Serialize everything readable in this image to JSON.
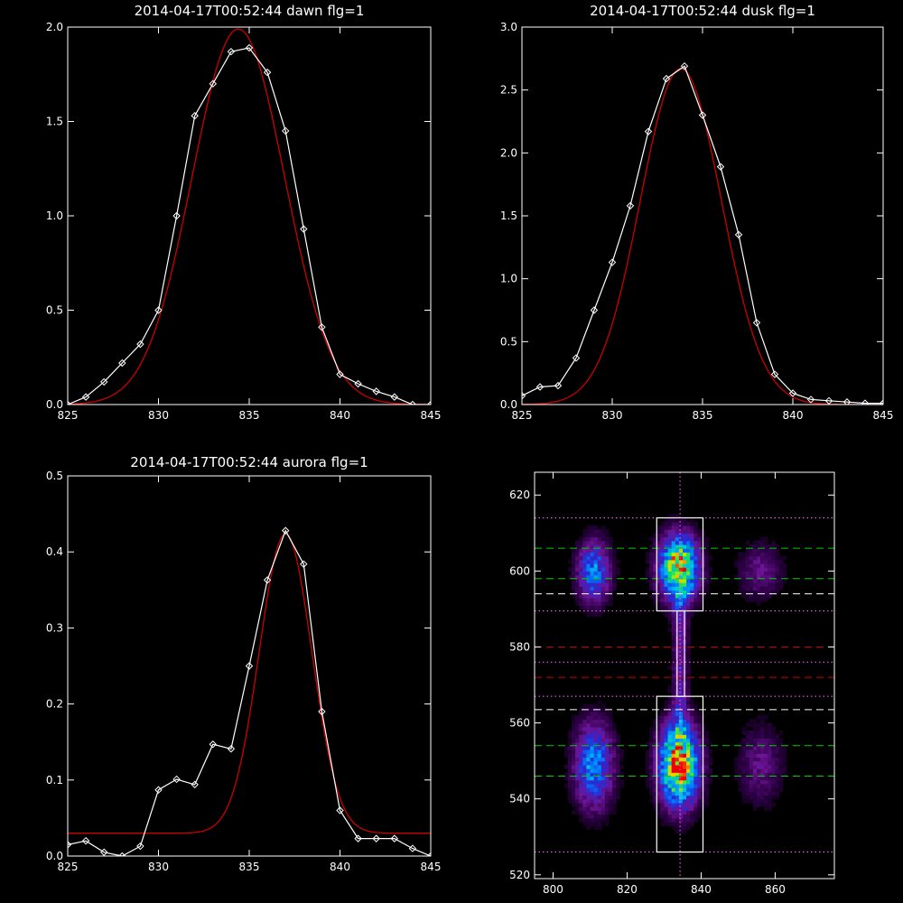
{
  "chart_data": [
    {
      "type": "line",
      "title": "2014-04-17T00:52:44 dawn flg=1",
      "xlim": [
        825,
        845
      ],
      "ylim": [
        0,
        2.0
      ],
      "xticks": [
        825,
        830,
        835,
        840,
        845
      ],
      "yticks": [
        0.0,
        0.5,
        1.0,
        1.5,
        2.0
      ],
      "xtick_labels": [
        "825",
        "830",
        "835",
        "840",
        "845"
      ],
      "ytick_labels": [
        "0.0",
        "0.5",
        "1.0",
        "1.5",
        "2.0"
      ],
      "series": [
        {
          "kind": "data",
          "color": "#ffffff",
          "marker": "diamond",
          "x": [
            825,
            826,
            827,
            828,
            829,
            830,
            831,
            832,
            833,
            834,
            835,
            836,
            837,
            838,
            839,
            840,
            841,
            842,
            843,
            844,
            845
          ],
          "y": [
            0.0,
            0.04,
            0.12,
            0.22,
            0.32,
            0.5,
            1.0,
            1.53,
            1.7,
            1.87,
            1.89,
            1.76,
            1.45,
            0.93,
            0.41,
            0.16,
            0.11,
            0.07,
            0.04,
            0.0,
            0.0
          ]
        },
        {
          "kind": "fit",
          "color": "#cc0000",
          "model": "gaussian",
          "amplitude": 1.99,
          "center": 834.4,
          "sigma": 2.55,
          "offset": 0.0
        }
      ]
    },
    {
      "type": "line",
      "title": "2014-04-17T00:52:44 dusk flg=1",
      "xlim": [
        825,
        845
      ],
      "ylim": [
        0,
        3.0
      ],
      "xticks": [
        825,
        830,
        835,
        840,
        845
      ],
      "yticks": [
        0.0,
        0.5,
        1.0,
        1.5,
        2.0,
        2.5,
        3.0
      ],
      "xtick_labels": [
        "825",
        "830",
        "835",
        "840",
        "845"
      ],
      "ytick_labels": [
        "0.0",
        "0.5",
        "1.0",
        "1.5",
        "2.0",
        "2.5",
        "3.0"
      ],
      "series": [
        {
          "kind": "data",
          "color": "#ffffff",
          "marker": "diamond",
          "x": [
            825,
            826,
            827,
            828,
            829,
            830,
            831,
            832,
            833,
            834,
            835,
            836,
            837,
            838,
            839,
            840,
            841,
            842,
            843,
            844,
            845
          ],
          "y": [
            0.07,
            0.14,
            0.15,
            0.37,
            0.75,
            1.13,
            1.58,
            2.17,
            2.59,
            2.69,
            2.3,
            1.89,
            1.35,
            0.65,
            0.24,
            0.09,
            0.04,
            0.03,
            0.02,
            0.01,
            0.01
          ]
        },
        {
          "kind": "fit",
          "color": "#cc0000",
          "model": "gaussian",
          "amplitude": 2.67,
          "center": 833.8,
          "sigma": 2.25,
          "offset": 0.0
        }
      ]
    },
    {
      "type": "line",
      "title": "2014-04-17T00:52:44 aurora flg=1",
      "xlim": [
        825,
        845
      ],
      "ylim": [
        0,
        0.5
      ],
      "xticks": [
        825,
        830,
        835,
        840,
        845
      ],
      "yticks": [
        0.0,
        0.1,
        0.2,
        0.3,
        0.4,
        0.5
      ],
      "xtick_labels": [
        "825",
        "830",
        "835",
        "840",
        "845"
      ],
      "ytick_labels": [
        "0.0",
        "0.1",
        "0.2",
        "0.3",
        "0.4",
        "0.5"
      ],
      "series": [
        {
          "kind": "data",
          "color": "#ffffff",
          "marker": "diamond",
          "x": [
            825,
            826,
            827,
            828,
            829,
            830,
            831,
            832,
            833,
            834,
            835,
            836,
            837,
            838,
            839,
            840,
            841,
            842,
            843,
            844,
            845
          ],
          "y": [
            0.015,
            0.02,
            0.005,
            0.0,
            0.013,
            0.087,
            0.101,
            0.094,
            0.147,
            0.141,
            0.25,
            0.363,
            0.428,
            0.384,
            0.19,
            0.06,
            0.023,
            0.023,
            0.023,
            0.01,
            0.0
          ]
        },
        {
          "kind": "fit",
          "color": "#cc0000",
          "model": "gaussian",
          "amplitude": 0.394,
          "center": 837.0,
          "sigma": 1.45,
          "offset": 0.03
        }
      ]
    },
    {
      "type": "heatmap",
      "title": "",
      "xlim": [
        795,
        876
      ],
      "ylim": [
        519,
        626
      ],
      "xticks": [
        800,
        820,
        840,
        860
      ],
      "yticks": [
        520,
        540,
        560,
        580,
        600,
        620
      ],
      "xtick_labels": [
        "800",
        "820",
        "840",
        "860"
      ],
      "ytick_labels": [
        "520",
        "540",
        "560",
        "580",
        "600",
        "620"
      ],
      "blobs": [
        {
          "x": 811,
          "y": 600,
          "sx": 3.0,
          "sy": 5.5,
          "peak": 0.45
        },
        {
          "x": 811,
          "y": 549,
          "sx": 3.5,
          "sy": 7.5,
          "peak": 0.48
        },
        {
          "x": 834,
          "y": 601,
          "sx": 3.5,
          "sy": 5.5,
          "peak": 0.92
        },
        {
          "x": 834,
          "y": 549,
          "sx": 3.5,
          "sy": 7.0,
          "peak": 1.0
        },
        {
          "x": 856,
          "y": 600,
          "sx": 4.0,
          "sy": 5.0,
          "peak": 0.17
        },
        {
          "x": 856,
          "y": 549,
          "sx": 4.0,
          "sy": 7.0,
          "peak": 0.17
        }
      ],
      "boxes": [
        {
          "x": [
            828,
            840.5
          ],
          "y": [
            589.5,
            614
          ],
          "color": "#ffffff"
        },
        {
          "x": [
            828,
            840.5
          ],
          "y": [
            526,
            567
          ],
          "color": "#ffffff"
        },
        {
          "x": [
            833.5,
            835.5
          ],
          "y": [
            567,
            589.5
          ],
          "color": "#ffffff"
        }
      ],
      "hlines": [
        {
          "y": 614,
          "color": "#ff66ff",
          "style": "dotted"
        },
        {
          "y": 606,
          "color": "#00cc00",
          "style": "dashed"
        },
        {
          "y": 598,
          "color": "#00cc00",
          "style": "dashed"
        },
        {
          "y": 594,
          "color": "#ffffff",
          "style": "dashed"
        },
        {
          "y": 589.5,
          "color": "#ff66ff",
          "style": "dotted"
        },
        {
          "y": 580,
          "color": "#cc0000",
          "style": "dashed"
        },
        {
          "y": 576,
          "color": "#ff66ff",
          "style": "dotted"
        },
        {
          "y": 572,
          "color": "#cc0000",
          "style": "dashed"
        },
        {
          "y": 567,
          "color": "#ff66ff",
          "style": "dotted"
        },
        {
          "y": 563.5,
          "color": "#ffffff",
          "style": "dashed"
        },
        {
          "y": 554,
          "color": "#00cc00",
          "style": "dashed"
        },
        {
          "y": 546,
          "color": "#00cc00",
          "style": "dashed"
        },
        {
          "y": 526,
          "color": "#ff66ff",
          "style": "dotted"
        }
      ],
      "vlines": [
        {
          "x": 834.3,
          "color": "#ff66ff",
          "style": "dotted"
        }
      ]
    }
  ]
}
